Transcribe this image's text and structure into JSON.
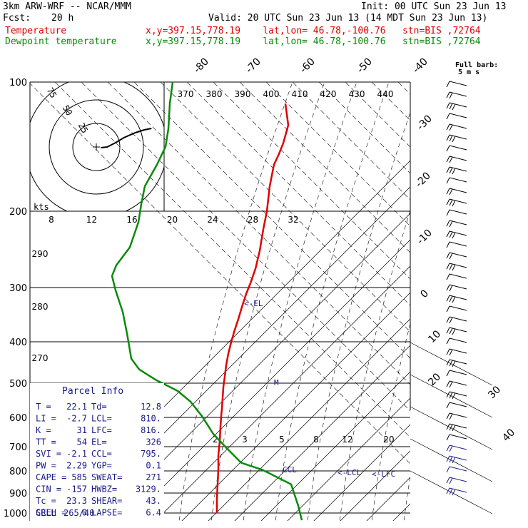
{
  "header": {
    "model": "3km ARW-WRF -- NCAR/MMM",
    "init": "Init: 00 UTC Sun 23 Jun 13",
    "fcst_label": "Fcst:",
    "fcst_value": "20 h",
    "valid": "Valid: 20 UTC Sun 23 Jun 13 (14 MDT Sun 23 Jun 13)",
    "temp_label": "Temperature",
    "dew_label": "Dewpoint temperature",
    "location": "x,y=397.15,778.19    lat,lon= 46.78,-100.76   stn=BIS ,72764"
  },
  "colors": {
    "temperature": "#e00000",
    "dewpoint": "#0a8a0a",
    "barbs": "#1a1a8c"
  },
  "chart_data": {
    "type": "line",
    "pressure_levels": [
      100,
      200,
      300,
      400,
      500,
      600,
      700,
      800,
      900,
      1000
    ],
    "isotherm_labels": [
      -80,
      -70,
      -60,
      -50,
      -40,
      -30,
      -20,
      -10,
      0,
      10,
      20,
      30,
      40
    ],
    "theta_labels": [
      370,
      380,
      390,
      400,
      410,
      420,
      430,
      440
    ],
    "dry_adiabat_side_labels": [
      290,
      280,
      270
    ],
    "wet_bulb_labels": [
      8,
      12,
      16,
      20,
      24,
      28,
      32
    ],
    "mixing_ratio_labels": [
      2,
      3,
      5,
      8,
      12,
      20
    ],
    "hodograph": {
      "units": "kts",
      "ring_labels": [
        25,
        50,
        75
      ],
      "trace": [
        [
          8,
          4
        ],
        [
          10,
          9
        ],
        [
          22,
          12
        ],
        [
          36,
          14
        ],
        [
          50,
          19
        ],
        [
          58,
          24
        ],
        [
          62,
          29
        ]
      ]
    },
    "series": [
      {
        "name": "Temperature",
        "color": "#e00000",
        "points": [
          [
            130,
            400
          ],
          [
            160,
            404
          ],
          [
            185,
            397
          ],
          [
            200,
            391
          ],
          [
            215,
            384
          ],
          [
            245,
            378
          ],
          [
            280,
            374
          ],
          [
            305,
            369
          ],
          [
            335,
            364
          ],
          [
            360,
            358
          ],
          [
            380,
            351
          ],
          [
            395,
            345
          ],
          [
            410,
            340
          ],
          [
            430,
            334
          ],
          [
            445,
            329
          ],
          [
            462,
            324
          ],
          [
            478,
            320
          ],
          [
            494,
            317
          ],
          [
            510,
            315
          ],
          [
            525,
            313
          ],
          [
            540,
            312
          ],
          [
            555,
            311
          ],
          [
            565,
            310
          ],
          [
            580,
            309
          ],
          [
            600,
            308
          ],
          [
            620,
            306
          ],
          [
            640,
            306
          ],
          [
            660,
            305
          ],
          [
            680,
            304
          ],
          [
            700,
            304
          ]
        ]
      },
      {
        "name": "Dewpoint temperature",
        "color": "#0a8a0a",
        "points": [
          [
            100,
            242
          ],
          [
            130,
            238
          ],
          [
            165,
            236
          ],
          [
            190,
            232
          ],
          [
            215,
            220
          ],
          [
            245,
            203
          ],
          [
            270,
            198
          ],
          [
            295,
            194
          ],
          [
            330,
            182
          ],
          [
            355,
            163
          ],
          [
            370,
            157
          ],
          [
            390,
            162
          ],
          [
            420,
            172
          ],
          [
            450,
            178
          ],
          [
            485,
            184
          ],
          [
            500,
            195
          ],
          [
            515,
            219
          ],
          [
            530,
            249
          ],
          [
            545,
            267
          ],
          [
            565,
            283
          ],
          [
            590,
            299
          ],
          [
            610,
            318
          ],
          [
            630,
            338
          ],
          [
            640,
            368
          ],
          [
            660,
            408
          ],
          [
            690,
            418
          ],
          [
            710,
            423
          ]
        ]
      }
    ],
    "markers": [
      {
        "text": "EL",
        "p": 326,
        "t": -8
      },
      {
        "text": "M",
        "p": 495,
        "t": -6
      },
      {
        "text": "CCL",
        "p": 795,
        "t": 13
      },
      {
        "text": "LCL",
        "p": 810,
        "t": 18
      },
      {
        "text": "LFC",
        "p": 816,
        "t": 22
      }
    ],
    "barbs": {
      "title": "Full barb:",
      "scale": "5 m s",
      "levels": [
        120,
        135,
        150,
        165,
        180,
        195,
        210,
        225,
        240,
        255,
        270,
        285,
        300,
        315,
        330,
        345,
        360,
        375,
        390,
        405,
        420,
        435,
        450,
        465,
        480,
        495,
        510,
        525,
        540,
        555,
        570,
        585,
        600,
        615,
        630,
        645,
        660,
        675,
        690
      ]
    }
  },
  "parcel_info": {
    "title": "Parcel Info",
    "rows": [
      {
        "k1": "T",
        "v1": "22.1",
        "k2": "Td",
        "v2": "12.8"
      },
      {
        "k1": "LI",
        "v1": "-2.7",
        "k2": "LCL",
        "v2": "810."
      },
      {
        "k1": "K",
        "v1": "31",
        "k2": "LFC",
        "v2": "816."
      },
      {
        "k1": "TT",
        "v1": "54",
        "k2": "EL",
        "v2": "326"
      },
      {
        "k1": "SVI",
        "v1": "-2.1",
        "k2": "CCL",
        "v2": "795."
      },
      {
        "k1": "PW",
        "v1": "2.29",
        "k2": "YGP",
        "v2": "0.1"
      },
      {
        "k1": "CAPE",
        "v1": "585",
        "k2": "SWEAT",
        "v2": "271"
      },
      {
        "k1": "CIN",
        "v1": "-157",
        "k2": "HWBZ",
        "v2": "3129."
      },
      {
        "k1": "Tc",
        "v1": "23.3",
        "k2": "SHEAR",
        "v2": "43."
      },
      {
        "k1": "SREH",
        "v1": "0",
        "k2": "LAPSE",
        "v2": "6.4"
      }
    ],
    "cell_label": "CELL",
    "cell_value": "265/40"
  }
}
